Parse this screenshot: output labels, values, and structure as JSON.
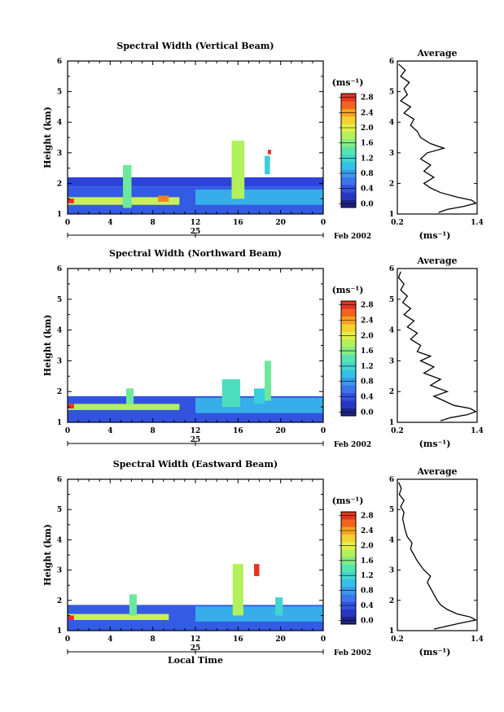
{
  "chart_data": [
    {
      "type": "heatmap",
      "title": "Spectral Width (Vertical Beam)",
      "ylabel": "Height (km)",
      "ylim": [
        1,
        6
      ],
      "yticks": [
        "1",
        "2",
        "3",
        "4",
        "5",
        "6"
      ],
      "xlim": [
        0,
        24
      ],
      "xticks": [
        "0",
        "4",
        "8",
        "12",
        "16",
        "20",
        "0"
      ],
      "date_day": "25",
      "date_label": "Feb 2002",
      "colorbar_unit": "(ms⁻¹)",
      "colorbar_ticks": [
        "0.0",
        "0.4",
        "0.8",
        "1.2",
        "1.6",
        "2.0",
        "2.4",
        "2.8"
      ],
      "colorbar_range": [
        0,
        3.0
      ],
      "features": [
        {
          "x": [
            0,
            24
          ],
          "y": [
            1.0,
            1.9
          ],
          "value": 0.55
        },
        {
          "x": [
            0,
            10.5
          ],
          "y": [
            1.3,
            1.55
          ],
          "value": 2.0
        },
        {
          "x": [
            0,
            0.6
          ],
          "y": [
            1.35,
            1.5
          ],
          "value": 2.9
        },
        {
          "x": [
            8.5,
            9.5
          ],
          "y": [
            1.4,
            1.6
          ],
          "value": 2.6
        },
        {
          "x": [
            0,
            24
          ],
          "y": [
            1.9,
            2.2
          ],
          "value": 0.4
        },
        {
          "x": [
            5.2,
            6.0
          ],
          "y": [
            1.2,
            2.6
          ],
          "value": 1.6
        },
        {
          "x": [
            12,
            24
          ],
          "y": [
            1.3,
            1.8
          ],
          "value": 1.0
        },
        {
          "x": [
            15.4,
            16.6
          ],
          "y": [
            1.5,
            3.4
          ],
          "value": 1.9
        },
        {
          "x": [
            18.5,
            19.0
          ],
          "y": [
            2.3,
            2.9
          ],
          "value": 1.2
        },
        {
          "x": [
            18.8,
            19.1
          ],
          "y": [
            2.95,
            3.1
          ],
          "value": 2.9
        }
      ],
      "average": {
        "title": "Average",
        "xlabel": "(ms⁻¹)",
        "xlim": [
          0.2,
          1.4
        ],
        "xticks": [
          "0.2",
          "1.4"
        ],
        "ylim": [
          1,
          6
        ],
        "yticks": [
          "1",
          "2",
          "3",
          "4",
          "5",
          "6"
        ],
        "profile": {
          "height": [
            1.05,
            1.15,
            1.25,
            1.35,
            1.45,
            1.55,
            1.7,
            1.85,
            2.0,
            2.2,
            2.4,
            2.6,
            2.8,
            3.0,
            3.15,
            3.3,
            3.5,
            3.7,
            3.9,
            4.1,
            4.3,
            4.5,
            4.7,
            4.9,
            5.1,
            5.3,
            5.5,
            5.7,
            5.9
          ],
          "width": [
            0.82,
            0.95,
            1.2,
            1.38,
            1.32,
            1.1,
            0.85,
            0.7,
            0.6,
            0.75,
            0.6,
            0.7,
            0.55,
            0.65,
            0.9,
            0.7,
            0.55,
            0.5,
            0.4,
            0.45,
            0.3,
            0.4,
            0.25,
            0.35,
            0.3,
            0.38,
            0.25,
            0.32,
            0.22
          ]
        }
      }
    },
    {
      "type": "heatmap",
      "title": "Spectral Width (Northward Beam)",
      "ylabel": "Height (km)",
      "ylim": [
        1,
        6
      ],
      "yticks": [
        "1",
        "2",
        "3",
        "4",
        "5",
        "6"
      ],
      "xlim": [
        0,
        24
      ],
      "xticks": [
        "0",
        "4",
        "8",
        "12",
        "16",
        "20",
        "0"
      ],
      "date_day": "25",
      "date_label": "Feb 2002",
      "colorbar_unit": "(ms⁻¹)",
      "colorbar_ticks": [
        "0.0",
        "0.4",
        "0.8",
        "1.2",
        "1.6",
        "2.0",
        "2.4",
        "2.8"
      ],
      "colorbar_range": [
        0,
        3.0
      ],
      "features": [
        {
          "x": [
            0,
            24
          ],
          "y": [
            1.0,
            1.85
          ],
          "value": 0.5
        },
        {
          "x": [
            0,
            10.5
          ],
          "y": [
            1.4,
            1.6
          ],
          "value": 1.9
        },
        {
          "x": [
            0,
            0.6
          ],
          "y": [
            1.45,
            1.6
          ],
          "value": 2.9
        },
        {
          "x": [
            5.5,
            6.2
          ],
          "y": [
            1.6,
            2.1
          ],
          "value": 1.6
        },
        {
          "x": [
            12,
            24
          ],
          "y": [
            1.3,
            1.8
          ],
          "value": 1.0
        },
        {
          "x": [
            14.5,
            16.2
          ],
          "y": [
            1.5,
            2.4
          ],
          "value": 1.4
        },
        {
          "x": [
            18.5,
            19.1
          ],
          "y": [
            1.7,
            3.0
          ],
          "value": 1.6
        },
        {
          "x": [
            17.5,
            18.5
          ],
          "y": [
            1.6,
            2.1
          ],
          "value": 1.2
        }
      ],
      "average": {
        "title": "Average",
        "xlabel": "(ms⁻¹)",
        "xlim": [
          0.2,
          1.4
        ],
        "xticks": [
          "0.2",
          "1.4"
        ],
        "ylim": [
          1,
          6
        ],
        "yticks": [
          "1",
          "2",
          "3",
          "4",
          "5",
          "6"
        ],
        "profile": {
          "height": [
            1.05,
            1.15,
            1.25,
            1.35,
            1.45,
            1.55,
            1.7,
            1.85,
            2.0,
            2.2,
            2.4,
            2.6,
            2.8,
            3.0,
            3.15,
            3.3,
            3.5,
            3.7,
            3.9,
            4.1,
            4.3,
            4.5,
            4.7,
            4.9,
            5.1,
            5.3,
            5.5,
            5.7,
            5.9
          ],
          "width": [
            0.85,
            1.0,
            1.25,
            1.38,
            1.3,
            1.05,
            0.9,
            0.75,
            0.95,
            0.7,
            0.85,
            0.6,
            0.75,
            0.55,
            0.7,
            0.5,
            0.55,
            0.4,
            0.5,
            0.35,
            0.45,
            0.3,
            0.4,
            0.28,
            0.35,
            0.25,
            0.3,
            0.22,
            0.25
          ]
        }
      }
    },
    {
      "type": "heatmap",
      "title": "Spectral Width (Eastward Beam)",
      "ylabel": "Height (km)",
      "ylim": [
        1,
        6
      ],
      "yticks": [
        "1",
        "2",
        "3",
        "4",
        "5",
        "6"
      ],
      "xlim": [
        0,
        24
      ],
      "xticks": [
        "0",
        "4",
        "8",
        "12",
        "16",
        "20",
        "0"
      ],
      "date_day": "25",
      "date_label": "Feb 2002",
      "xlabel": "Local Time",
      "colorbar_unit": "(ms⁻¹)",
      "colorbar_ticks": [
        "0.0",
        "0.4",
        "0.8",
        "1.2",
        "1.6",
        "2.0",
        "2.4",
        "2.8"
      ],
      "colorbar_range": [
        0,
        3.0
      ],
      "features": [
        {
          "x": [
            0,
            24
          ],
          "y": [
            1.0,
            1.85
          ],
          "value": 0.55
        },
        {
          "x": [
            0,
            9.5
          ],
          "y": [
            1.35,
            1.55
          ],
          "value": 2.0
        },
        {
          "x": [
            0,
            0.6
          ],
          "y": [
            1.35,
            1.5
          ],
          "value": 2.9
        },
        {
          "x": [
            5.8,
            6.5
          ],
          "y": [
            1.5,
            2.2
          ],
          "value": 1.6
        },
        {
          "x": [
            12,
            24
          ],
          "y": [
            1.3,
            1.8
          ],
          "value": 1.0
        },
        {
          "x": [
            15.5,
            16.5
          ],
          "y": [
            1.5,
            3.2
          ],
          "value": 1.9
        },
        {
          "x": [
            17.5,
            18.0
          ],
          "y": [
            2.8,
            3.2
          ],
          "value": 2.9
        },
        {
          "x": [
            19.5,
            20.2
          ],
          "y": [
            1.5,
            2.1
          ],
          "value": 1.3
        }
      ],
      "average": {
        "title": "Average",
        "xlabel": "(ms⁻¹)",
        "xlim": [
          0.2,
          1.4
        ],
        "xticks": [
          "0.2",
          "1.4"
        ],
        "ylim": [
          1,
          6
        ],
        "yticks": [
          "1",
          "2",
          "3",
          "4",
          "5",
          "6"
        ],
        "profile": {
          "height": [
            1.05,
            1.15,
            1.25,
            1.35,
            1.45,
            1.55,
            1.7,
            1.85,
            2.0,
            2.2,
            2.4,
            2.6,
            2.8,
            3.0,
            3.15,
            3.3,
            3.5,
            3.7,
            3.9,
            4.1,
            4.3,
            4.5,
            4.7,
            4.9,
            5.1,
            5.3,
            5.5,
            5.7,
            5.9
          ],
          "width": [
            0.75,
            0.95,
            1.15,
            1.38,
            1.3,
            1.1,
            0.95,
            0.85,
            0.8,
            0.75,
            0.7,
            0.65,
            0.7,
            0.6,
            0.55,
            0.5,
            0.45,
            0.4,
            0.42,
            0.35,
            0.32,
            0.3,
            0.28,
            0.3,
            0.25,
            0.3,
            0.23,
            0.26,
            0.22
          ]
        }
      }
    }
  ]
}
